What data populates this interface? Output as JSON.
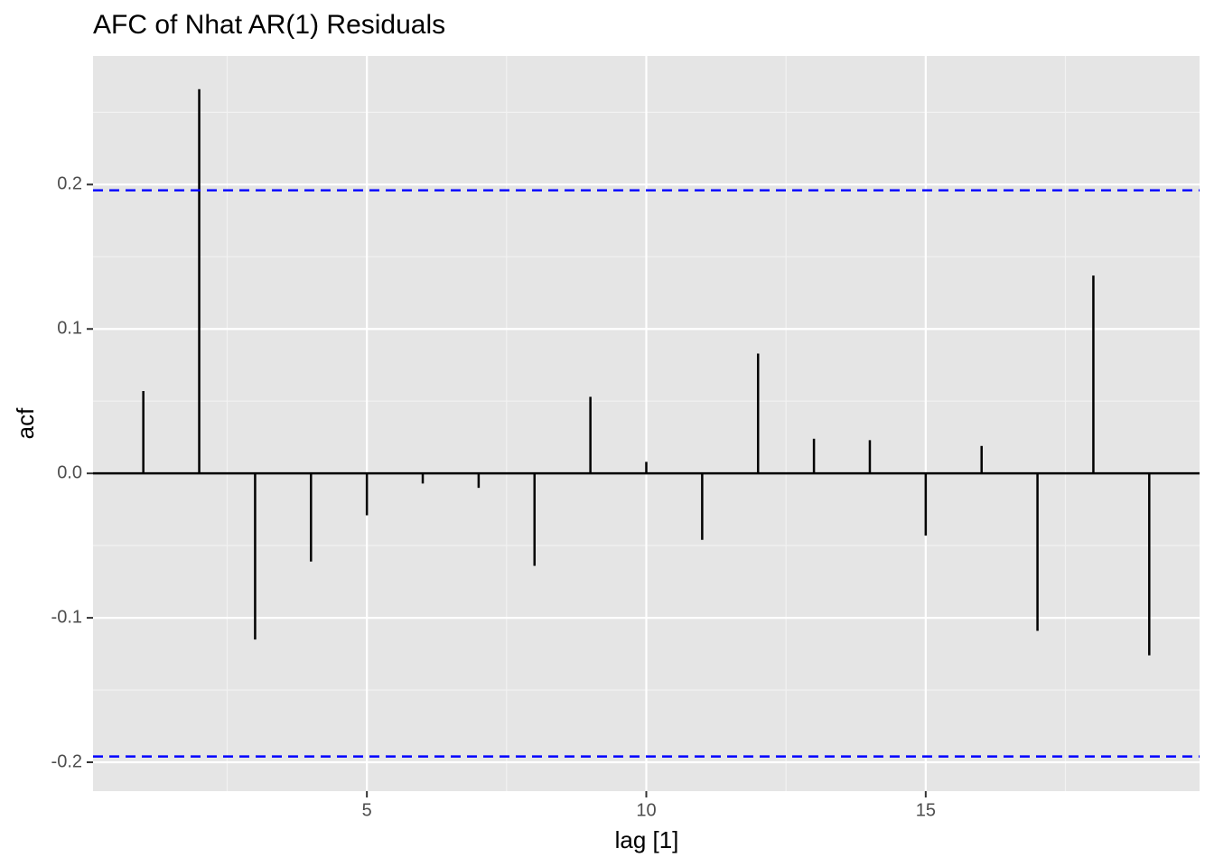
{
  "chart_data": {
    "type": "stem",
    "title": "AFC of Nhat AR(1) Residuals",
    "x_label": "lag [1]",
    "y_label": "acf",
    "x": [
      1,
      2,
      3,
      4,
      5,
      6,
      7,
      8,
      9,
      10,
      11,
      12,
      13,
      14,
      15,
      16,
      17,
      18,
      19
    ],
    "values": [
      0.057,
      0.266,
      -0.115,
      -0.061,
      -0.029,
      -0.007,
      -0.01,
      -0.064,
      0.053,
      0.008,
      -0.046,
      0.083,
      0.024,
      0.023,
      -0.043,
      0.019,
      -0.109,
      0.137,
      -0.126
    ],
    "color": "#000000",
    "ci_lines": [
      0.196,
      -0.196
    ],
    "ci_color": "#0000ff",
    "xlim": [
      0.1,
      19.9
    ],
    "ylim": [
      -0.22,
      0.289
    ],
    "xticks": [
      5,
      10,
      15
    ],
    "yticks": [
      -0.2,
      -0.1,
      {
        "value": 0,
        "label": "0.0"
      },
      0.1,
      0.2
    ],
    "xminor": [
      2.5,
      7.5,
      12.5,
      17.5
    ],
    "yminor": [
      -0.15,
      -0.05,
      0.05,
      0.15,
      0.25
    ],
    "grid": true
  }
}
